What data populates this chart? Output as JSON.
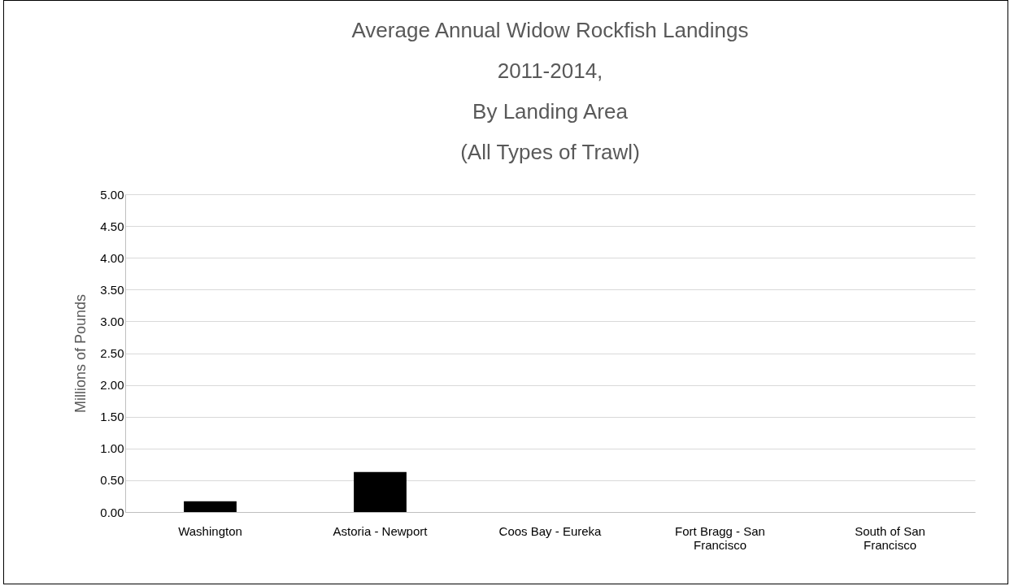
{
  "chart_data": {
    "type": "bar",
    "title": "Average Annual Widow Rockfish Landings\n2011-2014,\nBy Landing Area\n(All Types of Trawl)",
    "ylabel": "Millions of Pounds",
    "categories": [
      "Washington",
      "Astoria - Newport",
      "Coos Bay - Eureka",
      "Fort Bragg - San Francisco",
      "South of San Francisco"
    ],
    "values": [
      0.17,
      0.63,
      0,
      0,
      0
    ],
    "color": "#000000",
    "ylim": [
      0,
      5
    ],
    "yticks": [
      {
        "value": 0,
        "label": "0.00"
      },
      {
        "value": 0.5,
        "label": "0.50"
      },
      {
        "value": 1,
        "label": "1.00"
      },
      {
        "value": 1.5,
        "label": "1.50"
      },
      {
        "value": 2,
        "label": "2.00"
      },
      {
        "value": 2.5,
        "label": "2.50"
      },
      {
        "value": 3,
        "label": "3.00"
      },
      {
        "value": 3.5,
        "label": "3.50"
      },
      {
        "value": 4,
        "label": "4.00"
      },
      {
        "value": 4.5,
        "label": "4.50"
      },
      {
        "value": 5,
        "label": "5.00"
      }
    ],
    "grid": "y"
  }
}
